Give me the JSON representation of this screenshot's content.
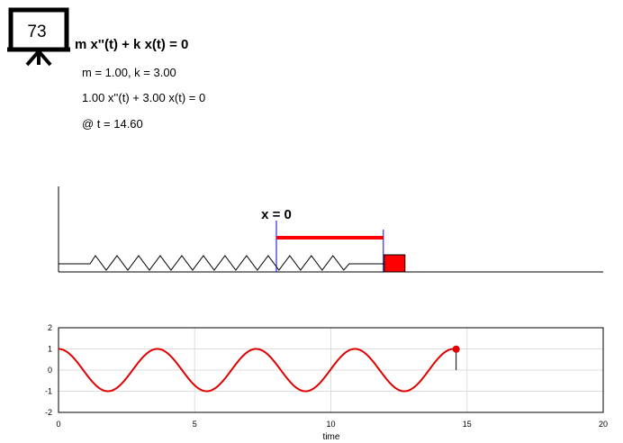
{
  "counter": {
    "value": "73"
  },
  "header": {
    "equation_title": "m x''(t) + k x(t) = 0",
    "params": "m = 1.00, k = 3.00",
    "substituted_equation": "1.00 x''(t) + 3.00 x(t) = 0",
    "time_readout": "@ t = 14.60"
  },
  "simulation": {
    "equilibrium_label": "x = 0",
    "displacement": 0.99,
    "colors": {
      "mass": "#ff0000",
      "marker": "#0000ff",
      "spring": "#000000"
    }
  },
  "chart_data": {
    "type": "line",
    "title": "",
    "xlabel": "time",
    "ylabel": "",
    "xlim": [
      0,
      20
    ],
    "ylim": [
      -2,
      2
    ],
    "xticks": [
      "0",
      "5",
      "10",
      "15",
      "20"
    ],
    "yticks": [
      "2",
      "1",
      "0",
      "-1",
      "-2"
    ],
    "grid": true,
    "omega": 1.732,
    "t_end": 14.6,
    "current_point": {
      "x": 14.6,
      "y": 0.99
    },
    "series": [
      {
        "color": "#e00000",
        "function": "cos(1.732 t)",
        "x_start": 0,
        "x_end": 14.6
      }
    ]
  }
}
